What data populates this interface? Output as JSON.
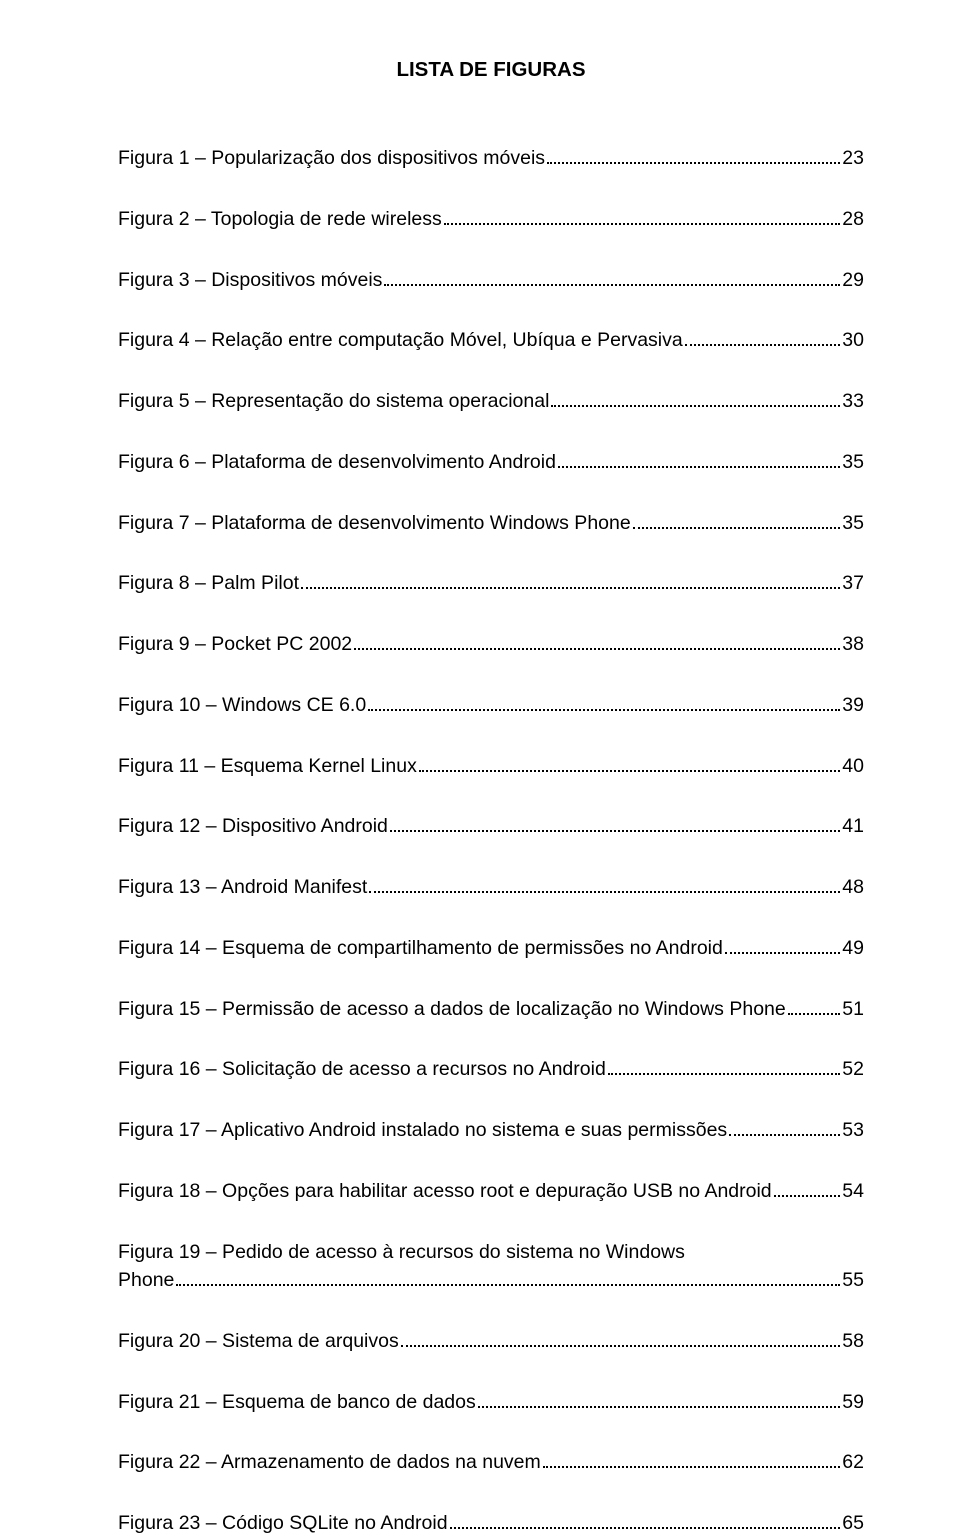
{
  "title": "LISTA DE FIGURAS",
  "entries": [
    {
      "label": "Figura 1 – Popularização dos dispositivos móveis",
      "page": "23"
    },
    {
      "label": "Figura 2 – Topologia de rede wireless",
      "page": "28"
    },
    {
      "label": "Figura 3 – Dispositivos móveis",
      "page": "29"
    },
    {
      "label": "Figura 4 – Relação entre computação Móvel, Ubíqua e Pervasiva",
      "page": "30"
    },
    {
      "label": "Figura 5 – Representação do sistema operacional",
      "page": "33"
    },
    {
      "label": "Figura 6 – Plataforma de desenvolvimento Android",
      "page": "35"
    },
    {
      "label": "Figura 7 – Plataforma de desenvolvimento Windows Phone",
      "page": "35"
    },
    {
      "label": "Figura 8 – Palm Pilot",
      "page": "37"
    },
    {
      "label": "Figura 9 – Pocket PC 2002",
      "page": "38"
    },
    {
      "label": "Figura 10 – Windows CE 6.0",
      "page": "39"
    },
    {
      "label": "Figura 11 – Esquema Kernel Linux",
      "page": "40"
    },
    {
      "label": "Figura 12 – Dispositivo Android",
      "page": "41"
    },
    {
      "label": "Figura 13 – Android Manifest",
      "page": "48"
    },
    {
      "label": "Figura 14 – Esquema de compartilhamento de permissões no Android",
      "page": "49"
    },
    {
      "label": "Figura 15 – Permissão de acesso a dados de localização no Windows Phone",
      "page": "51"
    },
    {
      "label": "Figura 16 – Solicitação de acesso a recursos no Android",
      "page": "52"
    },
    {
      "label": "Figura 17 – Aplicativo Android instalado no sistema e suas permissões",
      "page": "53"
    },
    {
      "label": "Figura 18 – Opções para habilitar acesso root e depuração USB no Android",
      "page": "54"
    },
    {
      "label": "Figura 19 – Pedido de acesso à recursos do sistema no Windows",
      "label2": "Phone",
      "page": "55",
      "multiline": true
    },
    {
      "label": "Figura 20 – Sistema de arquivos",
      "page": "58"
    },
    {
      "label": "Figura 21 – Esquema de banco de dados",
      "page": "59"
    },
    {
      "label": "Figura 22 – Armazenamento de dados na nuvem",
      "page": "62"
    },
    {
      "label": "Figura 23 – Código SQLite no Android",
      "page": "65"
    }
  ]
}
